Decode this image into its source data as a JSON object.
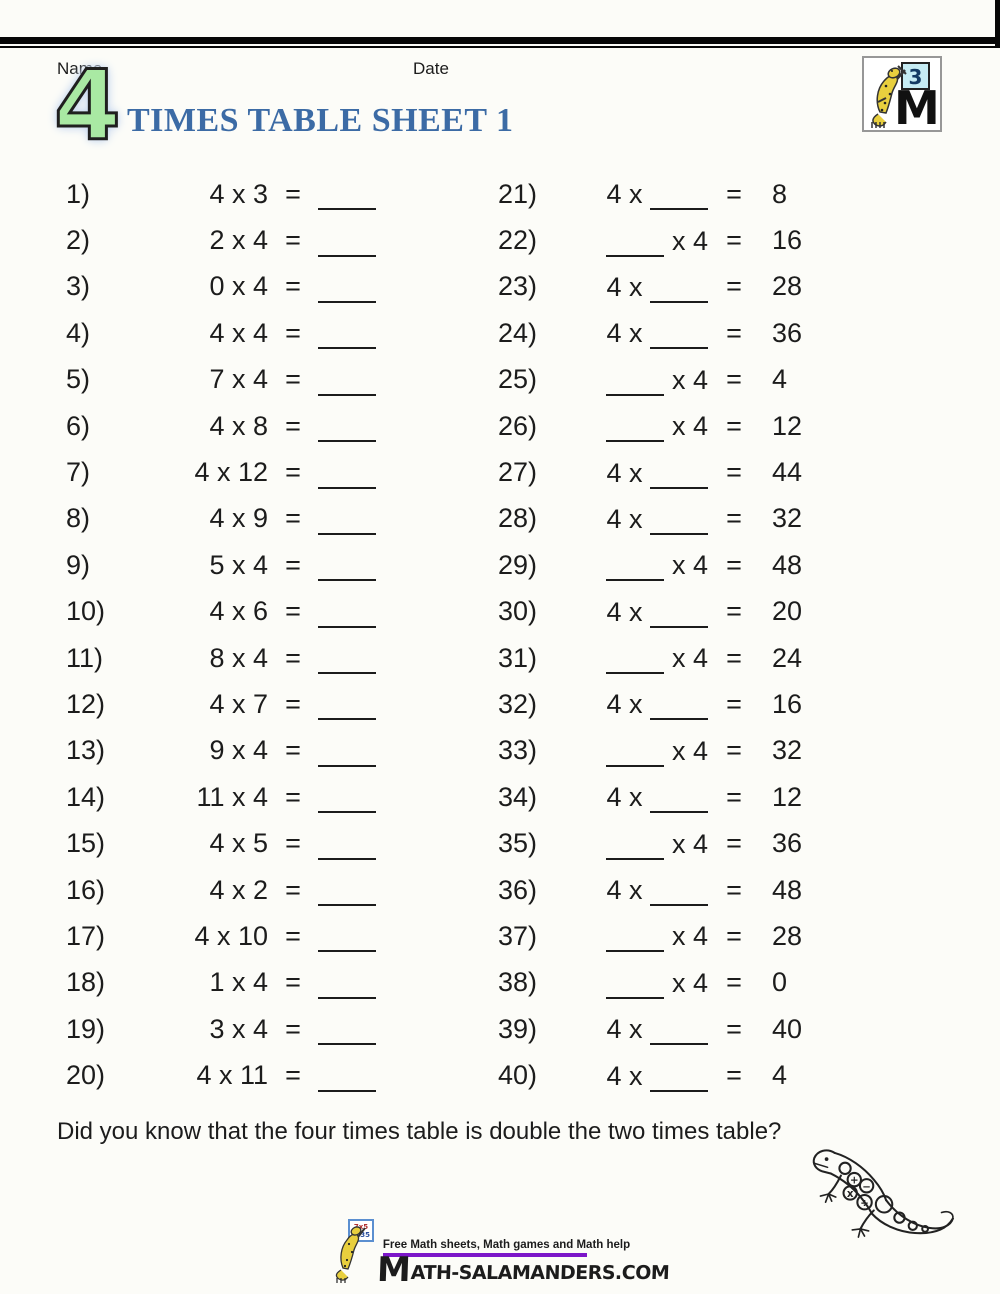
{
  "page": {
    "name_label": "Name",
    "date_label": "Date"
  },
  "title": {
    "big_number": "4",
    "heading": "TIMES TABLE SHEET 1"
  },
  "colors": {
    "big_number_fill": "#a9e9a3",
    "big_number_glow": "#c9d9f0",
    "heading_blue": "#3c6ba5",
    "rule_purple": "#7c16c9",
    "band_black": "#070707"
  },
  "logo_badge": {
    "number": "3"
  },
  "worksheet": {
    "equals_sign": "=",
    "left_problems": [
      {
        "n": "1)",
        "expr": "4 x 3"
      },
      {
        "n": "2)",
        "expr": "2 x 4"
      },
      {
        "n": "3)",
        "expr": "0 x 4"
      },
      {
        "n": "4)",
        "expr": "4 x 4"
      },
      {
        "n": "5)",
        "expr": "7 x 4"
      },
      {
        "n": "6)",
        "expr": "4 x 8"
      },
      {
        "n": "7)",
        "expr": "4 x 12"
      },
      {
        "n": "8)",
        "expr": "4 x 9"
      },
      {
        "n": "9)",
        "expr": "5 x 4"
      },
      {
        "n": "10)",
        "expr": "4 x 6"
      },
      {
        "n": "11)",
        "expr": "8 x 4"
      },
      {
        "n": "12)",
        "expr": "4 x 7"
      },
      {
        "n": "13)",
        "expr": "9 x 4"
      },
      {
        "n": "14)",
        "expr": "11 x 4"
      },
      {
        "n": "15)",
        "expr": "4 x 5"
      },
      {
        "n": "16)",
        "expr": "4 x 2"
      },
      {
        "n": "17)",
        "expr": "4 x 10"
      },
      {
        "n": "18)",
        "expr": "1 x 4"
      },
      {
        "n": "19)",
        "expr": "3 x 4"
      },
      {
        "n": "20)",
        "expr": "4 x 11"
      }
    ],
    "right_problems": [
      {
        "n": "21)",
        "factor": "4 x",
        "blank": "last",
        "answer": "8"
      },
      {
        "n": "22)",
        "factor": "x 4",
        "blank": "first",
        "answer": "16"
      },
      {
        "n": "23)",
        "factor": "4 x",
        "blank": "last",
        "answer": "28"
      },
      {
        "n": "24)",
        "factor": "4 x",
        "blank": "last",
        "answer": "36"
      },
      {
        "n": "25)",
        "factor": "x 4",
        "blank": "first",
        "answer": "4"
      },
      {
        "n": "26)",
        "factor": "x 4",
        "blank": "first",
        "answer": "12"
      },
      {
        "n": "27)",
        "factor": "4 x",
        "blank": "last",
        "answer": "44"
      },
      {
        "n": "28)",
        "factor": "4 x",
        "blank": "last",
        "answer": "32"
      },
      {
        "n": "29)",
        "factor": "x 4",
        "blank": "first",
        "answer": "48"
      },
      {
        "n": "30)",
        "factor": "4 x",
        "blank": "last",
        "answer": "20"
      },
      {
        "n": "31)",
        "factor": "x 4",
        "blank": "first",
        "answer": "24"
      },
      {
        "n": "32)",
        "factor": "4 x",
        "blank": "last",
        "answer": "16"
      },
      {
        "n": "33)",
        "factor": "x 4",
        "blank": "first",
        "answer": "32"
      },
      {
        "n": "34)",
        "factor": "4 x",
        "blank": "last",
        "answer": "12"
      },
      {
        "n": "35)",
        "factor": "x 4",
        "blank": "first",
        "answer": "36"
      },
      {
        "n": "36)",
        "factor": "4 x",
        "blank": "last",
        "answer": "48"
      },
      {
        "n": "37)",
        "factor": "x 4",
        "blank": "first",
        "answer": "28"
      },
      {
        "n": "38)",
        "factor": "x 4",
        "blank": "first",
        "answer": "0"
      },
      {
        "n": "39)",
        "factor": "4 x",
        "blank": "last",
        "answer": "40"
      },
      {
        "n": "40)",
        "factor": "4 x",
        "blank": "last",
        "answer": "4"
      }
    ]
  },
  "footnote": "Did you know that the four times table is double the two times table?",
  "footer": {
    "tagline": "Free Math sheets, Math games and Math help",
    "wordmark_initial": "M",
    "wordmark_rest": "ATH-SALAMANDERS.COM",
    "board_line1": "7x5",
    "board_line2": "= 35"
  }
}
